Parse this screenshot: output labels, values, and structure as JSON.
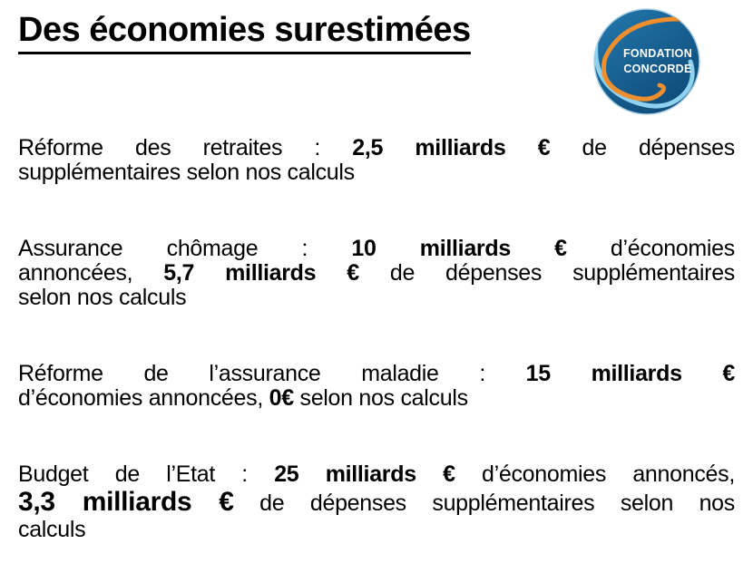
{
  "page": {
    "background": "#ffffff",
    "text_color": "#000000"
  },
  "title": "Des économies surestimées",
  "logo": {
    "line1": "FONDATION",
    "line2": "CONCORDE",
    "colors": {
      "blue": "#2379af",
      "blue_dark": "#0e4a78",
      "light_blue": "#8ed2ef",
      "orange": "#ee8e2c",
      "rim": "#aacfe3",
      "text": "#ffffff"
    }
  },
  "body": {
    "paragraphs": [
      {
        "lines": [
          [
            {
              "t": "Réforme des retraites : "
            },
            {
              "t": "2,5 milliards €",
              "b": true
            },
            {
              "t": " de dépenses"
            }
          ],
          [
            {
              "t": "supplémentaires selon nos calculs"
            }
          ]
        ]
      },
      {
        "lines": [
          [
            {
              "t": "Assurance chômage : "
            },
            {
              "t": "10 milliards €",
              "b": true
            },
            {
              "t": " d’économies"
            }
          ],
          [
            {
              "t": "annoncées, "
            },
            {
              "t": "5,7 milliards €",
              "b": true
            },
            {
              "t": " de dépenses supplémentaires"
            }
          ],
          [
            {
              "t": "selon nos calculs"
            }
          ]
        ]
      },
      {
        "lines": [
          [
            {
              "t": "Réforme de l’assurance maladie : "
            },
            {
              "t": "15 milliards €",
              "b": true
            }
          ],
          [
            {
              "t": "d’économies annoncées, "
            },
            {
              "t": "0€",
              "b": true
            },
            {
              "t": " selon nos calculs"
            }
          ]
        ]
      },
      {
        "lines": [
          [
            {
              "t": "Budget de l’Etat : "
            },
            {
              "t": "25 milliards €",
              "b": true
            },
            {
              "t": " d’économies annoncés,"
            }
          ],
          [
            {
              "t": "3,3 milliards €",
              "b": true,
              "xl": true
            },
            {
              "t": " de dépenses supplémentaires selon nos"
            }
          ],
          [
            {
              "t": "calculs"
            }
          ]
        ]
      }
    ]
  }
}
